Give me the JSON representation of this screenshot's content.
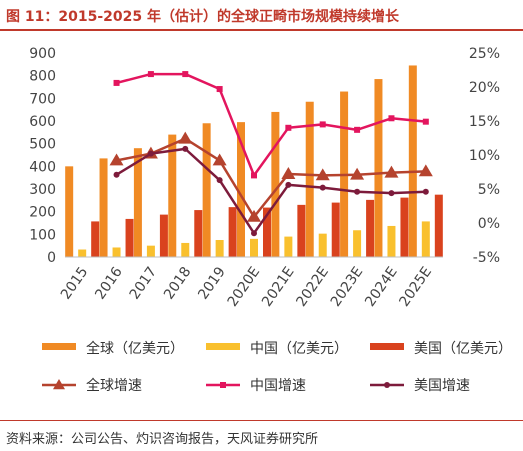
{
  "header": {
    "title": "图 11：2015-2025 年（估计）的全球正畸市场规模持续增长"
  },
  "footer": {
    "source": "资料来源：公司公告、灼识咨询报告，天风证券研究所"
  },
  "colors": {
    "global_bar": "#f08a24",
    "china_bar": "#f9c02e",
    "us_bar": "#d9421e",
    "global_growth": "#b5432e",
    "china_growth": "#e3155e",
    "us_growth": "#7d1b3b",
    "title": "#c0392b"
  },
  "chart_data": {
    "type": "bar",
    "title": "",
    "xlabel": "",
    "ylabel": "",
    "categories": [
      "2015",
      "2016",
      "2017",
      "2018",
      "2019",
      "2020E",
      "2021E",
      "2022E",
      "2023E",
      "2024E",
      "2025E"
    ],
    "ylim": [
      0,
      900
    ],
    "yticks": [
      "0",
      "100",
      "200",
      "300",
      "400",
      "500",
      "600",
      "700",
      "800",
      "900"
    ],
    "y2lim": [
      -5,
      25
    ],
    "y2ticks": [
      "-5%",
      "0%",
      "5%",
      "10%",
      "15%",
      "20%",
      "25%"
    ],
    "grid": false,
    "legend_position": "bottom",
    "series": [
      {
        "name": "全球（亿美元）",
        "kind": "bar",
        "axis": "left",
        "values": [
          400,
          435,
          480,
          540,
          590,
          595,
          640,
          685,
          730,
          785,
          845
        ]
      },
      {
        "name": "中国（亿美元）",
        "kind": "bar",
        "axis": "left",
        "values": [
          33,
          42,
          50,
          62,
          75,
          80,
          90,
          103,
          118,
          137,
          157
        ]
      },
      {
        "name": "美国（亿美元）",
        "kind": "bar",
        "axis": "left",
        "values": [
          157,
          168,
          187,
          207,
          220,
          218,
          230,
          240,
          252,
          262,
          275
        ]
      },
      {
        "name": "全球增速",
        "kind": "line",
        "axis": "right",
        "marker": "triangle",
        "values": [
          null,
          9.2,
          10.2,
          12.4,
          9.2,
          0.9,
          7.2,
          7.0,
          7.1,
          7.4,
          7.6
        ]
      },
      {
        "name": "中国增速",
        "kind": "line",
        "axis": "right",
        "marker": "square",
        "values": [
          null,
          20.6,
          21.9,
          21.9,
          19.7,
          7.0,
          14.0,
          14.5,
          13.7,
          15.4,
          14.9
        ]
      },
      {
        "name": "美国增速",
        "kind": "line",
        "axis": "right",
        "marker": "circle",
        "values": [
          null,
          7.1,
          10.2,
          10.9,
          6.3,
          -1.5,
          5.6,
          5.2,
          4.6,
          4.4,
          4.6
        ]
      }
    ]
  }
}
